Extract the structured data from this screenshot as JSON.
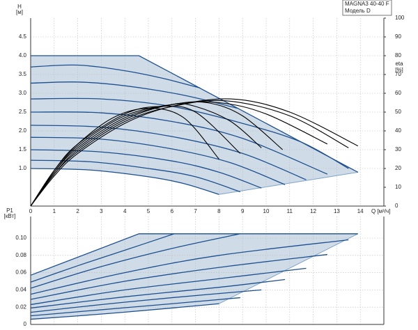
{
  "header": {
    "lines": [
      "MAGNA3 40-40 F",
      "Модель D"
    ]
  },
  "chart_data": [
    {
      "type": "line",
      "ylabel": "H",
      "yunit": "[м]",
      "y2label": "eta",
      "y2unit": "[%]",
      "xlabel": "Q [м³/ч]",
      "xlim": [
        0,
        15
      ],
      "xticks": [
        0,
        1,
        2,
        3,
        4,
        5,
        6,
        7,
        8,
        9,
        10,
        11,
        12,
        13,
        14
      ],
      "ylim": [
        0,
        5
      ],
      "yticks": [
        {
          "value": 1,
          "label": "1.0"
        },
        1.5,
        {
          "value": 2,
          "label": "2.0"
        },
        2.5,
        {
          "value": 3,
          "label": "3.0"
        },
        3.5,
        {
          "value": 4,
          "label": "4.0"
        },
        4.5
      ],
      "y2lim": [
        0,
        100
      ],
      "y2ticks": [
        0,
        10,
        20,
        30,
        40,
        50,
        60,
        70,
        80,
        90,
        100
      ],
      "grid": true,
      "area_color": "#cfdbe7",
      "envelope": {
        "color": "#1c4f8f",
        "x": [
          0,
          4.6,
          13.9
        ],
        "values": [
          4.0,
          4.0,
          0.9
        ]
      },
      "series": [
        {
          "color": "#1c4f8f",
          "x": [
            0,
            2,
            4,
            5.6,
            7.2
          ],
          "values": [
            3.7,
            3.75,
            3.6,
            3.4,
            3.14
          ]
        },
        {
          "color": "#1c4f8f",
          "x": [
            0,
            2,
            4,
            6.5,
            8.8
          ],
          "values": [
            3.27,
            3.3,
            3.2,
            2.95,
            2.6
          ]
        },
        {
          "color": "#1c4f8f",
          "x": [
            0,
            3,
            6,
            9,
            11.5,
            13.5
          ],
          "values": [
            2.85,
            2.85,
            2.65,
            2.2,
            1.7,
            1.0
          ]
        },
        {
          "color": "#1c4f8f",
          "x": [
            0,
            3,
            6,
            9,
            12.6
          ],
          "values": [
            2.5,
            2.48,
            2.25,
            1.8,
            0.85
          ]
        },
        {
          "color": "#1c4f8f",
          "x": [
            0,
            3,
            6,
            9,
            11.7
          ],
          "values": [
            2.15,
            2.1,
            1.85,
            1.4,
            0.7
          ]
        },
        {
          "color": "#1c4f8f",
          "x": [
            0,
            3,
            6,
            8.5,
            10.8
          ],
          "values": [
            1.83,
            1.78,
            1.52,
            1.15,
            0.57
          ]
        },
        {
          "color": "#1c4f8f",
          "x": [
            0,
            3,
            6,
            8,
            9.8
          ],
          "values": [
            1.5,
            1.44,
            1.2,
            0.9,
            0.48
          ]
        },
        {
          "color": "#1c4f8f",
          "x": [
            0,
            2.5,
            5,
            7,
            8.9
          ],
          "values": [
            1.22,
            1.18,
            1.0,
            0.78,
            0.38
          ]
        },
        {
          "color": "#1c4f8f",
          "x": [
            0,
            2.5,
            5,
            6.5,
            8
          ],
          "values": [
            1.0,
            0.96,
            0.78,
            0.6,
            0.31
          ]
        },
        {
          "color": "#000000",
          "axis": "y2",
          "x": [
            0,
            1,
            2,
            4,
            6,
            8.5,
            11,
            13.9
          ],
          "values": [
            0,
            16,
            28,
            44,
            53,
            57,
            50,
            32
          ]
        },
        {
          "color": "#000000",
          "axis": "y2",
          "x": [
            0,
            1,
            2,
            4,
            6,
            8.3,
            11,
            13.5
          ],
          "values": [
            0,
            17,
            29,
            45,
            53,
            56,
            48,
            31
          ]
        },
        {
          "color": "#000000",
          "axis": "y2",
          "x": [
            0,
            1,
            2,
            4,
            6,
            8,
            10,
            12.6
          ],
          "values": [
            0,
            17,
            30,
            46,
            54,
            55,
            49,
            33
          ]
        },
        {
          "color": "#000000",
          "axis": "y2",
          "x": [
            0,
            1,
            2,
            4,
            6,
            7.5,
            9,
            10.7
          ],
          "values": [
            0,
            18,
            31,
            47,
            54,
            55,
            48,
            30
          ]
        },
        {
          "color": "#000000",
          "axis": "y2",
          "x": [
            0,
            1,
            2,
            4,
            6,
            7,
            8.5,
            9.8
          ],
          "values": [
            0,
            18,
            32,
            48,
            54,
            53,
            45,
            31
          ]
        },
        {
          "color": "#000000",
          "axis": "y2",
          "x": [
            0,
            1,
            2,
            4,
            5.5,
            7,
            8.9
          ],
          "values": [
            0,
            19,
            33,
            49,
            53,
            50,
            28
          ]
        },
        {
          "color": "#000000",
          "axis": "y2",
          "x": [
            0,
            1,
            2,
            3.5,
            5,
            6.5,
            8
          ],
          "values": [
            0,
            19,
            33,
            47,
            52,
            47,
            25
          ]
        }
      ]
    },
    {
      "type": "line",
      "ylabel": "P1",
      "yunit": "[кВт]",
      "xlim": [
        0,
        15
      ],
      "ylim": [
        0,
        0.125
      ],
      "yticks": [
        0,
        0.02,
        0.04,
        0.06,
        0.08,
        {
          "value": 0.1,
          "label": "0.10"
        }
      ],
      "grid": true,
      "area_color": "#cfdbe7",
      "envelope": {
        "color": "#1c4f8f",
        "x": [
          0,
          4.6,
          13.9
        ],
        "values": [
          0.057,
          0.105,
          0.105
        ]
      },
      "series": [
        {
          "color": "#1c4f8f",
          "x": [
            0,
            2,
            4,
            6.1
          ],
          "values": [
            0.049,
            0.068,
            0.086,
            0.105
          ]
        },
        {
          "color": "#1c4f8f",
          "x": [
            0,
            3,
            6,
            8.9
          ],
          "values": [
            0.042,
            0.067,
            0.088,
            0.105
          ]
        },
        {
          "color": "#1c4f8f",
          "x": [
            0,
            4,
            8,
            13.5
          ],
          "values": [
            0.035,
            0.06,
            0.08,
            0.098
          ]
        },
        {
          "color": "#1c4f8f",
          "x": [
            0,
            4,
            8,
            12.6
          ],
          "values": [
            0.029,
            0.05,
            0.066,
            0.081
          ]
        },
        {
          "color": "#1c4f8f",
          "x": [
            0,
            4,
            8,
            11.7
          ],
          "values": [
            0.023,
            0.04,
            0.053,
            0.065
          ]
        },
        {
          "color": "#1c4f8f",
          "x": [
            0,
            4,
            8,
            10.8
          ],
          "values": [
            0.019,
            0.032,
            0.043,
            0.052
          ]
        },
        {
          "color": "#1c4f8f",
          "x": [
            0,
            3,
            6,
            9.8
          ],
          "values": [
            0.014,
            0.023,
            0.031,
            0.04
          ]
        },
        {
          "color": "#1c4f8f",
          "x": [
            0,
            3,
            6,
            8.9
          ],
          "values": [
            0.01,
            0.017,
            0.024,
            0.031
          ]
        },
        {
          "color": "#1c4f8f",
          "x": [
            0,
            3,
            6,
            8
          ],
          "values": [
            0.006,
            0.012,
            0.019,
            0.024
          ]
        }
      ]
    }
  ]
}
